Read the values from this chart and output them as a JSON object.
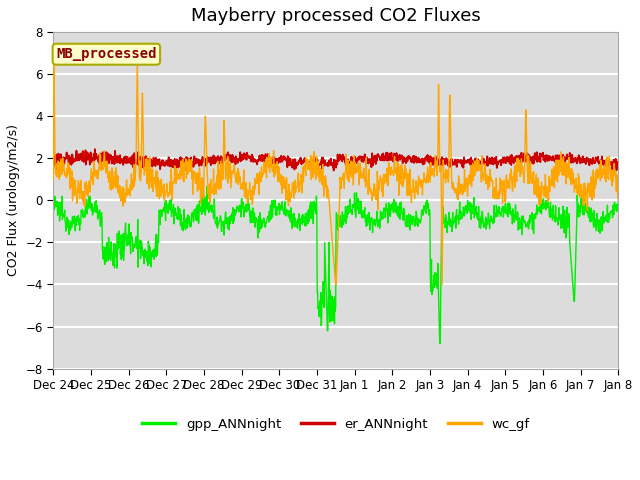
{
  "title": "Mayberry processed CO2 Fluxes",
  "ylabel": "CO2 Flux (urology/m2/s)",
  "ylim": [
    -8,
    8
  ],
  "yticks": [
    -8,
    -6,
    -4,
    -2,
    0,
    2,
    4,
    6,
    8
  ],
  "axes_bg_color": "#dcdcdc",
  "grid_color": "white",
  "legend_labels": [
    "gpp_ANNnight",
    "er_ANNnight",
    "wc_gf"
  ],
  "legend_colors": [
    "#00ee00",
    "#cc0000",
    "#ffa500"
  ],
  "annotation_text": "MB_processed",
  "annotation_color": "#8b0000",
  "annotation_bg": "#ffffcc",
  "annotation_edge": "#aaaa00",
  "x_labels": [
    "Dec 24",
    "Dec 25",
    "Dec 26",
    "Dec 27",
    "Dec 28",
    "Dec 29",
    "Dec 30",
    "Dec 31",
    "Jan 1",
    "Jan 2",
    "Jan 3",
    "Jan 4",
    "Jan 5",
    "Jan 6",
    "Jan 7",
    "Jan 8"
  ],
  "title_fontsize": 13,
  "label_fontsize": 9,
  "tick_fontsize": 8.5,
  "legend_fontsize": 9.5,
  "linewidth_data": 1.0,
  "linewidth_legend": 2.5
}
